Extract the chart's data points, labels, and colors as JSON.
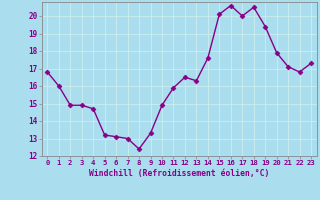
{
  "x": [
    0,
    1,
    2,
    3,
    4,
    5,
    6,
    7,
    8,
    9,
    10,
    11,
    12,
    13,
    14,
    15,
    16,
    17,
    18,
    19,
    20,
    21,
    22,
    23
  ],
  "y": [
    16.8,
    16.0,
    14.9,
    14.9,
    14.7,
    13.2,
    13.1,
    13.0,
    12.4,
    13.3,
    14.9,
    15.9,
    16.5,
    16.3,
    17.6,
    20.1,
    20.6,
    20.0,
    20.5,
    19.4,
    17.9,
    17.1,
    16.8,
    17.3
  ],
  "ylim": [
    12,
    20.8
  ],
  "yticks": [
    12,
    13,
    14,
    15,
    16,
    17,
    18,
    19,
    20
  ],
  "xlim": [
    -0.5,
    23.5
  ],
  "xlabel": "Windchill (Refroidissement éolien,°C)",
  "line_color": "#880088",
  "marker": "D",
  "bg_color": "#aaddee",
  "grid_color": "#cceeee",
  "tick_label_color": "#880088",
  "axis_label_color": "#880088"
}
